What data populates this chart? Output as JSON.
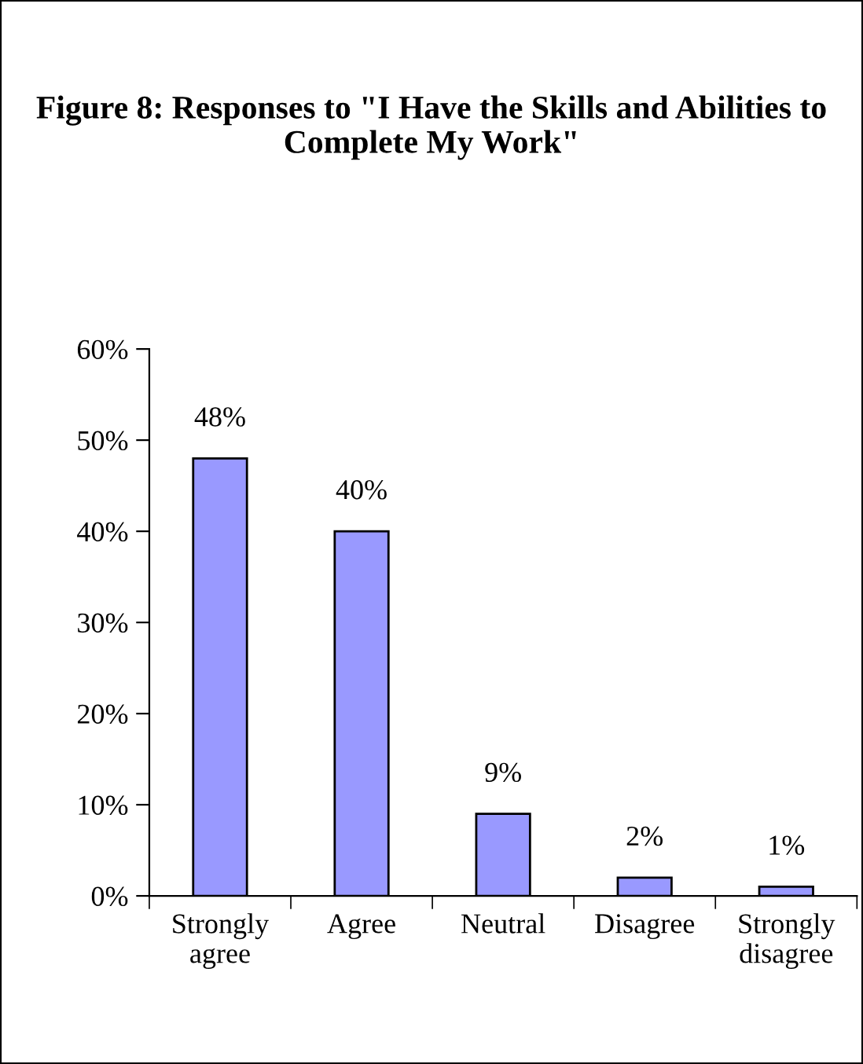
{
  "chart_data": {
    "type": "bar",
    "title": "Figure 8: Responses to \"I Have the Skills and Abilities to Complete My Work\"",
    "categories": [
      "Strongly agree",
      "Agree",
      "Neutral",
      "Disagree",
      "Strongly disagree"
    ],
    "values": [
      48,
      40,
      9,
      2,
      1
    ],
    "color": "#9999ff",
    "data_labels": true,
    "value_labels": [
      "48%",
      "40%",
      "9%",
      "2%",
      "1%"
    ],
    "ylim": [
      0,
      60
    ],
    "yticks": [
      {
        "value": 0,
        "label": "0%"
      },
      {
        "value": 10,
        "label": "10%"
      },
      {
        "value": 20,
        "label": "20%"
      },
      {
        "value": 30,
        "label": "30%"
      },
      {
        "value": 40,
        "label": "40%"
      },
      {
        "value": 50,
        "label": "50%"
      },
      {
        "value": 60,
        "label": "60%"
      }
    ],
    "grid": false,
    "legend": false
  }
}
